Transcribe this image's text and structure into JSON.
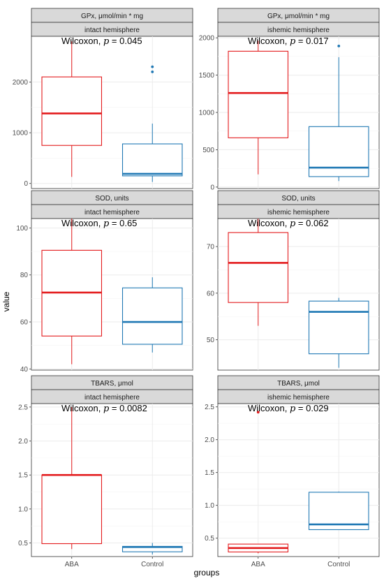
{
  "chart_data": {
    "type": "box",
    "xlabel": "groups",
    "ylabel": "value",
    "groups": [
      "ABA",
      "Control"
    ],
    "colors": {
      "ABA": "#e31a1c",
      "Control": "#1f78b4"
    },
    "grid": true,
    "panels": [
      {
        "measure": "GPx, μmol/min * mg",
        "hemisphere": "intact hemisphere",
        "annotation": {
          "prefix": "Wilcoxon, ",
          "p_symbol": "p",
          "suffix": " = 0.045"
        },
        "ylim": [
          -100,
          2900
        ],
        "yticks": [
          0,
          1000,
          2000
        ],
        "yticklabels": [
          "0",
          "1000",
          "2000"
        ],
        "boxes": [
          {
            "group": "ABA",
            "whisker_low": 130,
            "q1": 750,
            "median": 1380,
            "q3": 2100,
            "whisker_high": 2800,
            "outliers": []
          },
          {
            "group": "Control",
            "whisker_low": 30,
            "q1": 150,
            "median": 190,
            "q3": 780,
            "whisker_high": 1180,
            "outliers": [
              2200,
              2300
            ]
          }
        ]
      },
      {
        "measure": "GPx, μmol/min * mg",
        "hemisphere": "ishemic hemisphere",
        "annotation": {
          "prefix": "Wilcoxon, ",
          "p_symbol": "p",
          "suffix": " = 0.017"
        },
        "ylim": [
          -20,
          2020
        ],
        "yticks": [
          0,
          500,
          1000,
          1500,
          2000
        ],
        "yticklabels": [
          "0",
          "500",
          "1000",
          "1500",
          "2000"
        ],
        "boxes": [
          {
            "group": "ABA",
            "whisker_low": 170,
            "q1": 660,
            "median": 1260,
            "q3": 1820,
            "whisker_high": 1960,
            "outliers": []
          },
          {
            "group": "Control",
            "whisker_low": 80,
            "q1": 140,
            "median": 260,
            "q3": 810,
            "whisker_high": 1740,
            "outliers": [
              1890
            ]
          }
        ]
      },
      {
        "measure": "SOD, units",
        "hemisphere": "intact hemisphere",
        "annotation": {
          "prefix": "Wilcoxon, ",
          "p_symbol": "p",
          "suffix": " = 0.65"
        },
        "ylim": [
          39.5,
          104
        ],
        "yticks": [
          40,
          60,
          80,
          100
        ],
        "yticklabels": [
          "40",
          "60",
          "80",
          "100"
        ],
        "boxes": [
          {
            "group": "ABA",
            "whisker_low": 42,
            "q1": 54,
            "median": 72.5,
            "q3": 90.5,
            "whisker_high": 104,
            "outliers": []
          },
          {
            "group": "Control",
            "whisker_low": 47,
            "q1": 50.5,
            "median": 60,
            "q3": 74.5,
            "whisker_high": 79,
            "outliers": []
          }
        ]
      },
      {
        "measure": "SOD, units",
        "hemisphere": "ishemic hemisphere",
        "annotation": {
          "prefix": "Wilcoxon, ",
          "p_symbol": "p",
          "suffix": " = 0.062"
        },
        "ylim": [
          43.5,
          76
        ],
        "yticks": [
          50,
          60,
          70
        ],
        "yticklabels": [
          "50",
          "60",
          "70"
        ],
        "boxes": [
          {
            "group": "ABA",
            "whisker_low": 53,
            "q1": 58,
            "median": 66.5,
            "q3": 73,
            "whisker_high": 76,
            "outliers": []
          },
          {
            "group": "Control",
            "whisker_low": 44,
            "q1": 47,
            "median": 56,
            "q3": 58.3,
            "whisker_high": 59,
            "outliers": []
          }
        ]
      },
      {
        "measure": "TBARS, μmol",
        "hemisphere": "intact hemisphere",
        "annotation": {
          "prefix": "Wilcoxon, ",
          "p_symbol": "p",
          "suffix": " = 0.0082"
        },
        "ylim": [
          0.3,
          2.55
        ],
        "yticks": [
          0.5,
          1.0,
          1.5,
          2.0,
          2.5
        ],
        "yticklabels": [
          "0.5",
          "1.0",
          "1.5",
          "2.0",
          "2.5"
        ],
        "boxes": [
          {
            "group": "ABA",
            "whisker_low": 0.41,
            "q1": 0.49,
            "median": 1.5,
            "q3": 1.5,
            "whisker_high": 2.5,
            "outliers": []
          },
          {
            "group": "Control",
            "whisker_low": 0.33,
            "q1": 0.37,
            "median": 0.44,
            "q3": 0.45,
            "whisker_high": 0.5,
            "outliers": []
          }
        ]
      },
      {
        "measure": "TBARS, μmol",
        "hemisphere": "ishemic hemisphere",
        "annotation": {
          "prefix": "Wilcoxon, ",
          "p_symbol": "p",
          "suffix": " = 0.029"
        },
        "ylim": [
          0.22,
          2.55
        ],
        "yticks": [
          0.5,
          1.0,
          1.5,
          2.0,
          2.5
        ],
        "yticklabels": [
          "0.5",
          "1.0",
          "1.5",
          "2.0",
          "2.5"
        ],
        "boxes": [
          {
            "group": "ABA",
            "whisker_low": 0.27,
            "q1": 0.29,
            "median": 0.35,
            "q3": 0.41,
            "whisker_high": 0.41,
            "outliers": [
              2.42
            ]
          },
          {
            "group": "Control",
            "whisker_low": 0.63,
            "q1": 0.63,
            "median": 0.71,
            "q3": 1.2,
            "whisker_high": 1.21,
            "outliers": []
          }
        ]
      }
    ]
  }
}
